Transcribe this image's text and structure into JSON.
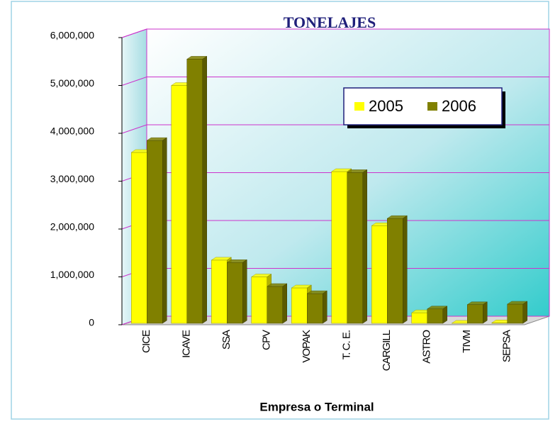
{
  "chart_data": {
    "type": "bar",
    "title": "TONELAJES",
    "x_label": "Empresa o Terminal",
    "categories": [
      "CICE",
      "ICAVE",
      "SSA",
      "CPV",
      "VOPAK",
      "T. C. E.",
      "CARGILL",
      "ASTRO",
      "TIVM",
      "SEPSA"
    ],
    "series": [
      {
        "name": "2005",
        "color": "#ffff00",
        "values": [
          3600000,
          5000000,
          1350000,
          1000000,
          770000,
          3200000,
          2070000,
          250000,
          30000,
          40000
        ]
      },
      {
        "name": "2006",
        "color": "#808000",
        "values": [
          3850000,
          5550000,
          1300000,
          800000,
          650000,
          3180000,
          2220000,
          330000,
          420000,
          430000
        ]
      }
    ],
    "ylim": [
      0,
      6000000
    ],
    "yticks": [
      0,
      {
        "value": 1000000,
        "label": "1,000,000"
      },
      {
        "value": 2000000,
        "label": "2,000,000"
      },
      {
        "value": 3000000,
        "label": "3,000,000"
      },
      {
        "value": 4000000,
        "label": "4,000,000"
      },
      {
        "value": 5000000,
        "label": "5,000,000"
      },
      {
        "value": 6000000,
        "label": "6,000,000"
      }
    ],
    "grid": true,
    "legend": "upper right"
  }
}
